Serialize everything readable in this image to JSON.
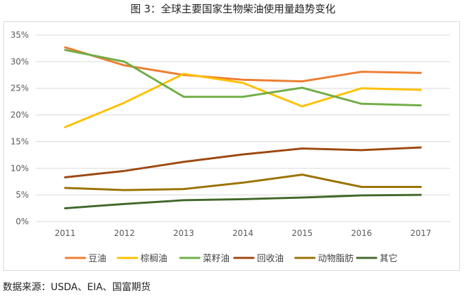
{
  "title": "图 3：全球主要国家生物柴油使用量趋势变化",
  "source": "数据来源：USDA、EIA、国富期货",
  "chart_data": {
    "type": "line",
    "x": [
      "2011",
      "2012",
      "2013",
      "2014",
      "2015",
      "2016",
      "2017"
    ],
    "ylim": [
      0,
      35
    ],
    "yticks": [
      "0%",
      "5%",
      "10%",
      "15%",
      "20%",
      "25%",
      "30%",
      "35%"
    ],
    "grid": true,
    "legend": "bottom",
    "series": [
      {
        "name": "豆油",
        "color": "#ed7d31",
        "values": [
          32.7,
          29.3,
          27.5,
          26.6,
          26.3,
          28.1,
          27.9
        ]
      },
      {
        "name": "棕榈油",
        "color": "#ffc000",
        "values": [
          17.7,
          22.3,
          27.7,
          26.0,
          21.6,
          25.0,
          24.7
        ]
      },
      {
        "name": "菜籽油",
        "color": "#70ad47",
        "values": [
          32.2,
          30.0,
          23.4,
          23.4,
          25.1,
          22.1,
          21.8
        ]
      },
      {
        "name": "回收油",
        "color": "#9e480e",
        "values": [
          8.3,
          9.5,
          11.2,
          12.6,
          13.7,
          13.4,
          13.9
        ]
      },
      {
        "name": "动物脂肪",
        "color": "#997300",
        "values": [
          6.3,
          5.9,
          6.1,
          7.3,
          8.8,
          6.5,
          6.5
        ]
      },
      {
        "name": "其它",
        "color": "#43682b",
        "values": [
          2.5,
          3.3,
          4.0,
          4.2,
          4.5,
          4.9,
          5.0
        ]
      }
    ]
  }
}
